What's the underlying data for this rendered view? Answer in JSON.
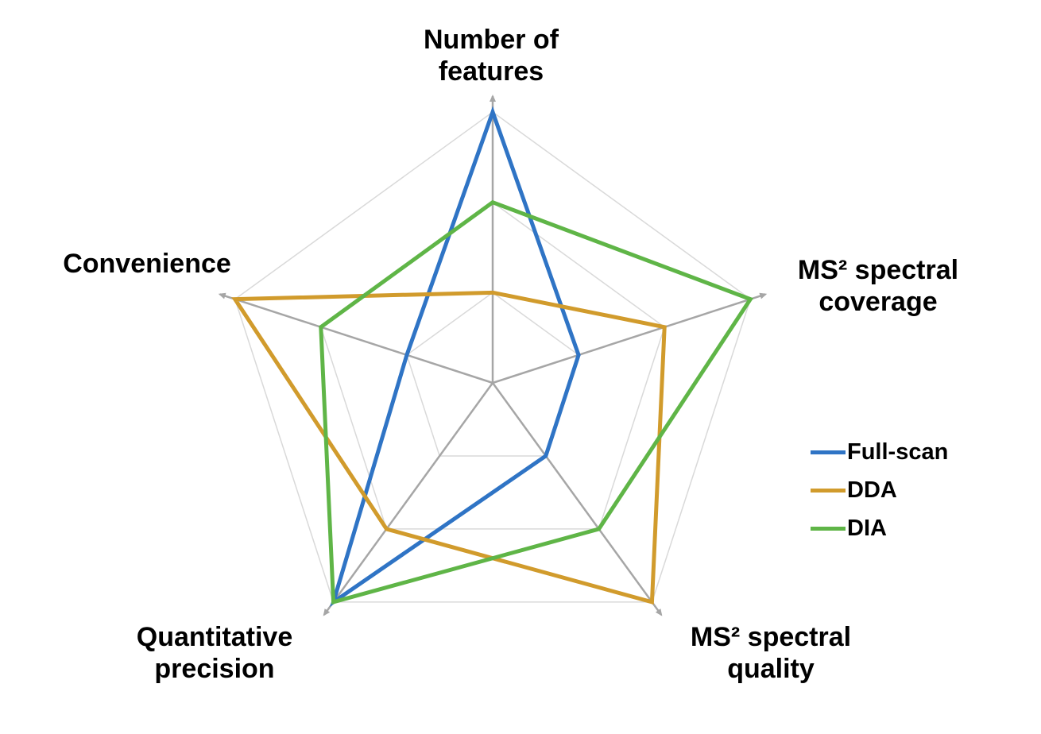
{
  "chart_data": {
    "type": "radar",
    "axes": [
      {
        "label_line1": "Number of",
        "label_line2": "features"
      },
      {
        "label_line1": "MS² spectral",
        "label_line2": "coverage"
      },
      {
        "label_line1": "MS² spectral",
        "label_line2": "quality"
      },
      {
        "label_line1": "Quantitative",
        "label_line2": "precision"
      },
      {
        "label_line1": "Convenience",
        "label_line2": ""
      }
    ],
    "rings": 3,
    "max": 3,
    "series": [
      {
        "name": "Full-scan",
        "color": "#2f74c5",
        "values": [
          3,
          1,
          1,
          3,
          1
        ]
      },
      {
        "name": "DDA",
        "color": "#d19b2c",
        "values": [
          1,
          2,
          3,
          2,
          3
        ]
      },
      {
        "name": "DIA",
        "color": "#5fb547",
        "values": [
          2,
          3,
          2,
          3,
          2
        ]
      }
    ],
    "grid": true,
    "legend_position": "right"
  }
}
